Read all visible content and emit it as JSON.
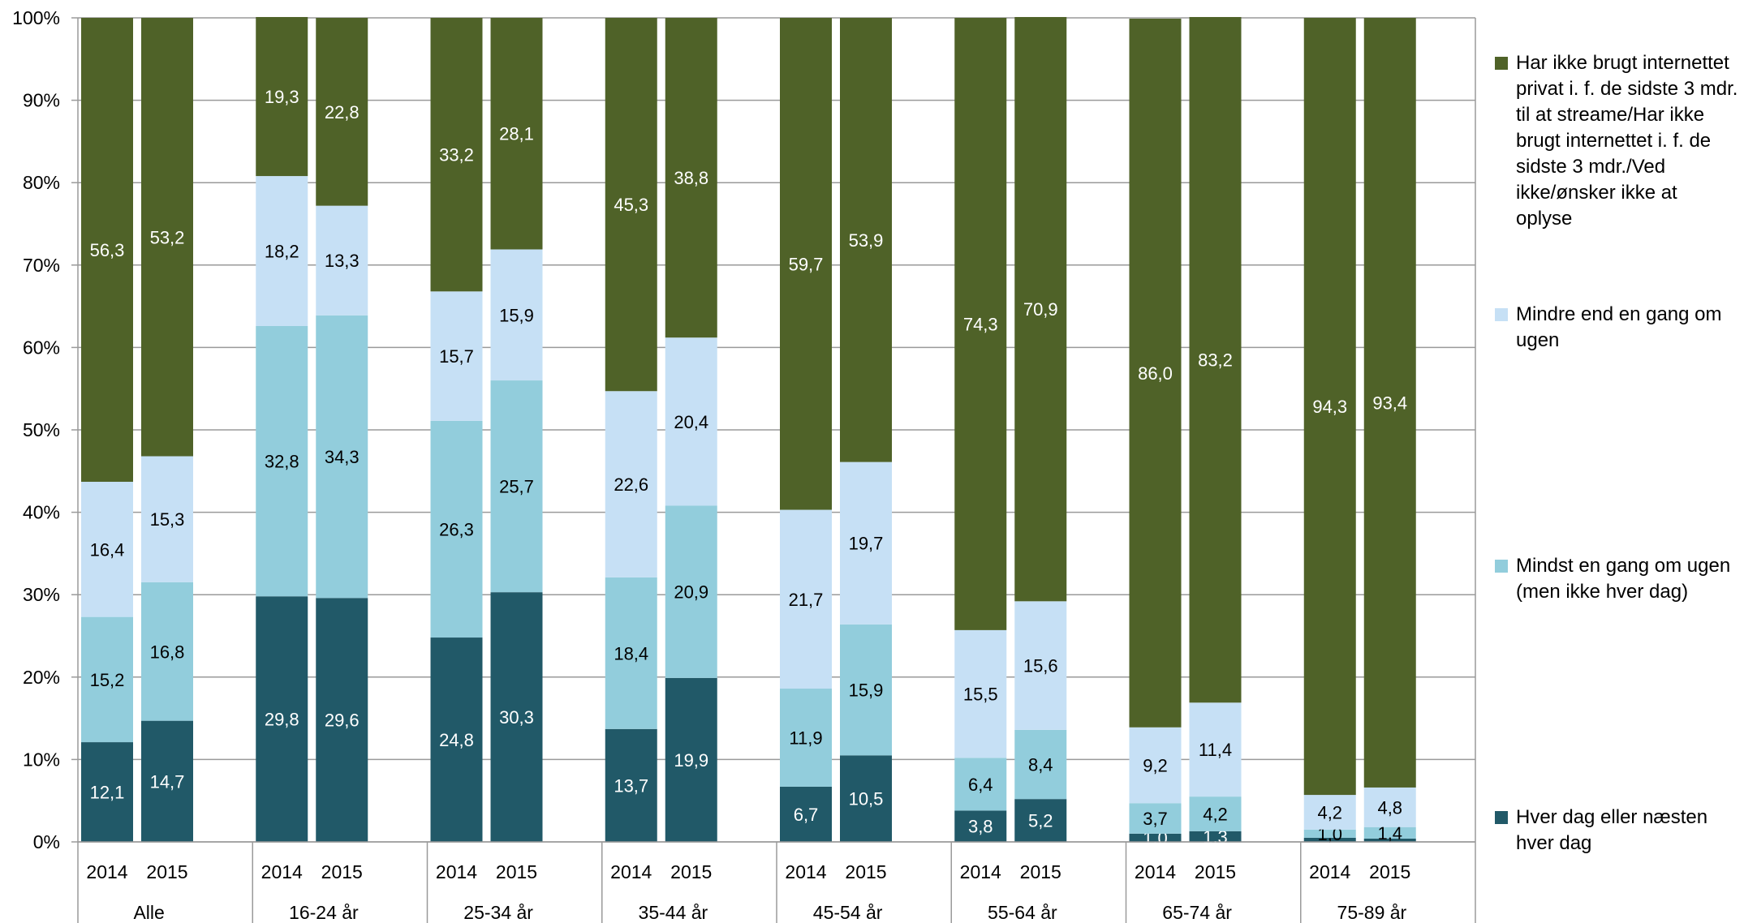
{
  "chart_data": {
    "type": "bar",
    "stacked": true,
    "percent_stacked": true,
    "groups": [
      "Alle",
      "16-24 år",
      "25-34 år",
      "35-44 år",
      "45-54 år",
      "55-64 år",
      "65-74 år",
      "75-89 år"
    ],
    "years": [
      "2014",
      "2015"
    ],
    "y_ticks": [
      "0%",
      "10%",
      "20%",
      "30%",
      "40%",
      "50%",
      "60%",
      "70%",
      "80%",
      "90%",
      "100%"
    ],
    "ylim": [
      0,
      100
    ],
    "grid": true,
    "legend_position": "right",
    "series": [
      {
        "name": "Hver dag eller næsten hver dag",
        "color": "#215968",
        "label_color": "#ffffff",
        "values": [
          [
            12.1,
            14.7
          ],
          [
            29.8,
            29.6
          ],
          [
            24.8,
            30.3
          ],
          [
            13.7,
            19.9
          ],
          [
            6.7,
            10.5
          ],
          [
            3.8,
            5.2
          ],
          [
            1.0,
            1.3
          ],
          [
            0.5,
            0.4
          ]
        ],
        "labels": [
          [
            "12,1",
            "14,7"
          ],
          [
            "29,8",
            "29,6"
          ],
          [
            "24,8",
            "30,3"
          ],
          [
            "13,7",
            "19,9"
          ],
          [
            "6,7",
            "10,5"
          ],
          [
            "3,8",
            "5,2"
          ],
          [
            "1,0",
            "1,3"
          ],
          [
            "",
            ""
          ]
        ]
      },
      {
        "name": "Mindst en gang om ugen (men ikke hver dag)",
        "color": "#92CDDC",
        "label_color": "#000000",
        "values": [
          [
            15.2,
            16.8
          ],
          [
            32.8,
            34.3
          ],
          [
            26.3,
            25.7
          ],
          [
            18.4,
            20.9
          ],
          [
            11.9,
            15.9
          ],
          [
            6.4,
            8.4
          ],
          [
            3.7,
            4.2
          ],
          [
            1.0,
            1.4
          ]
        ],
        "labels": [
          [
            "15,2",
            "16,8"
          ],
          [
            "32,8",
            "34,3"
          ],
          [
            "26,3",
            "25,7"
          ],
          [
            "18,4",
            "20,9"
          ],
          [
            "11,9",
            "15,9"
          ],
          [
            "6,4",
            "8,4"
          ],
          [
            "3,7",
            "4,2"
          ],
          [
            "1,0",
            "1,4"
          ]
        ]
      },
      {
        "name": "Mindre end en gang om ugen",
        "color": "#C6E0F5",
        "label_color": "#000000",
        "values": [
          [
            16.4,
            15.3
          ],
          [
            18.2,
            13.3
          ],
          [
            15.7,
            15.9
          ],
          [
            22.6,
            20.4
          ],
          [
            21.7,
            19.7
          ],
          [
            15.5,
            15.6
          ],
          [
            9.2,
            11.4
          ],
          [
            4.2,
            4.8
          ]
        ],
        "labels": [
          [
            "16,4",
            "15,3"
          ],
          [
            "18,2",
            "13,3"
          ],
          [
            "15,7",
            "15,9"
          ],
          [
            "22,6",
            "20,4"
          ],
          [
            "21,7",
            "19,7"
          ],
          [
            "15,5",
            "15,6"
          ],
          [
            "9,2",
            "11,4"
          ],
          [
            "4,2",
            "4,8"
          ]
        ]
      },
      {
        "name": "Har ikke brugt internettet privat i. f. de sidste 3 mdr. til at streame/Har ikke brugt internettet i. f. de sidste 3 mdr./Ved ikke/ønsker ikke at oplyse",
        "color": "#4F6228",
        "label_color": "#ffffff",
        "values": [
          [
            56.3,
            53.2
          ],
          [
            19.3,
            22.8
          ],
          [
            33.2,
            28.1
          ],
          [
            45.3,
            38.8
          ],
          [
            59.7,
            53.9
          ],
          [
            74.3,
            70.9
          ],
          [
            86.0,
            83.2
          ],
          [
            94.3,
            93.4
          ]
        ],
        "labels": [
          [
            "56,3",
            "53,2"
          ],
          [
            "19,3",
            "22,8"
          ],
          [
            "33,2",
            "28,1"
          ],
          [
            "45,3",
            "38,8"
          ],
          [
            "59,7",
            "53,9"
          ],
          [
            "74,3",
            "70,9"
          ],
          [
            "86,0",
            "83,2"
          ],
          [
            "94,3",
            "93,4"
          ]
        ]
      }
    ]
  },
  "legend": [
    {
      "color": "#4F6228",
      "lines": [
        "Har ikke brugt internettet",
        "privat i. f. de sidste 3 mdr.",
        "til at streame/Har ikke",
        "brugt internettet i. f. de",
        "sidste 3 mdr./Ved",
        "ikke/ønsker ikke at oplyse"
      ]
    },
    {
      "color": "#C6E0F5",
      "lines": [
        "Mindre end en gang om",
        "ugen"
      ]
    },
    {
      "color": "#92CDDC",
      "lines": [
        "Mindst en gang om ugen",
        "(men ikke hver dag)"
      ]
    },
    {
      "color": "#215968",
      "lines": [
        "Hver dag eller næsten",
        "hver dag"
      ]
    }
  ]
}
